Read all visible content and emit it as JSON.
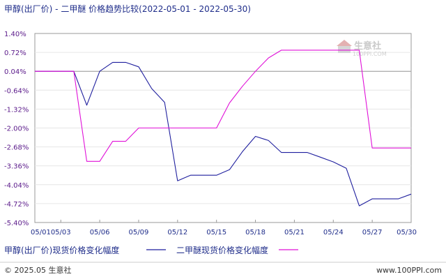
{
  "chart_data": {
    "type": "line",
    "title": "甲醇(出厂价) - 二甲醚 价格趋势比较(2022-05-01 - 2022-05-30)",
    "x": [
      "05/01",
      "05/02",
      "05/03",
      "05/04",
      "05/05",
      "05/06",
      "05/07",
      "05/08",
      "05/09",
      "05/10",
      "05/11",
      "05/12",
      "05/13",
      "05/14",
      "05/15",
      "05/16",
      "05/17",
      "05/18",
      "05/19",
      "05/20",
      "05/21",
      "05/22",
      "05/23",
      "05/24",
      "05/25",
      "05/26",
      "05/27",
      "05/28",
      "05/29",
      "05/30"
    ],
    "x_ticks": [
      "05/01",
      "05/03",
      "05/06",
      "05/09",
      "05/12",
      "05/15",
      "05/18",
      "05/21",
      "05/24",
      "05/27",
      "05/30"
    ],
    "y_ticks": [
      "1.40%",
      "0.72%",
      "0.04%",
      "-0.64%",
      "-1.32%",
      "-2.00%",
      "-2.68%",
      "-3.36%",
      "-4.04%",
      "-4.72%",
      "-5.40%"
    ],
    "ylim": [
      -5.4,
      1.4
    ],
    "grid": "horizontal",
    "legend_position": "bottom",
    "series": [
      {
        "name": "甲醇(出厂价)现货价格变化幅度",
        "color": "#1f1f9e",
        "values": [
          0.04,
          0.04,
          0.04,
          0.04,
          -1.18,
          0.04,
          0.36,
          0.36,
          0.2,
          -0.58,
          -1.08,
          -3.9,
          -3.7,
          -3.7,
          -3.7,
          -3.5,
          -2.85,
          -2.3,
          -2.45,
          -2.88,
          -2.88,
          -2.88,
          -3.05,
          -3.22,
          -3.45,
          -4.8,
          -4.55,
          -4.55,
          -4.55,
          -4.38
        ]
      },
      {
        "name": "二甲醚现货价格变化幅度",
        "color": "#e010d8",
        "values": [
          0.04,
          0.04,
          0.04,
          0.04,
          -3.2,
          -3.2,
          -2.48,
          -2.48,
          -2.0,
          -2.0,
          -2.0,
          -2.0,
          -2.0,
          -2.0,
          -2.0,
          -1.1,
          -0.5,
          0.04,
          0.52,
          0.8,
          0.8,
          0.8,
          0.8,
          0.8,
          0.8,
          0.8,
          -2.72,
          -2.72,
          -2.72,
          -2.72
        ]
      }
    ]
  },
  "watermark": {
    "brand": "生意社",
    "sub": "100PPI.COM"
  },
  "footer": {
    "left": "© 2025.05 生意社",
    "right": "www.100PPI.com"
  }
}
